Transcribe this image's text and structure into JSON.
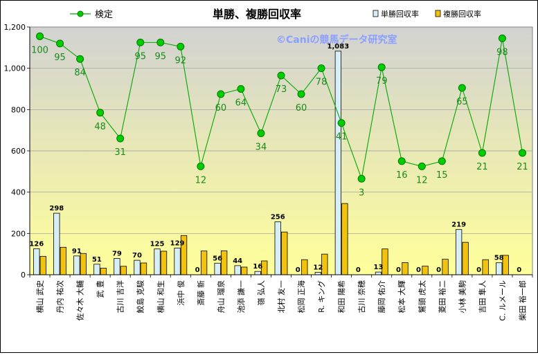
{
  "chart_data": {
    "type": "bar",
    "title": "単勝、複勝回収率",
    "watermark": "©Caniの競馬データ研究室",
    "categories": [
      "横山 武史",
      "丹内 祐次",
      "佐々木 大輔",
      "武 豊",
      "古川 吉洋",
      "鮫島 克駿",
      "横山 和生",
      "浜中 俊",
      "斎藤 新",
      "舟山 瑠泉",
      "池添 謙一",
      "嶺 弘人",
      "北村 友一",
      "松岡 正海",
      "R. キング",
      "和田 陽希",
      "古川 奈穂",
      "藤岡 佑介",
      "松本 大輝",
      "鷲頭 虎太",
      "菱田 裕二",
      "小林 美駒",
      "吉田 隼人",
      "C. ルメール",
      "柴田 裕一郎"
    ],
    "series": [
      {
        "name": "単勝回収率",
        "color": "#d8eef6",
        "values": [
          126,
          298,
          91,
          51,
          79,
          70,
          125,
          129,
          0,
          56,
          44,
          16,
          256,
          0,
          12,
          1083,
          0,
          13,
          0,
          0,
          0,
          219,
          0,
          58,
          0
        ]
      },
      {
        "name": "複勝回収率",
        "color": "#f2c20e",
        "values": [
          89,
          133,
          103,
          32,
          41,
          57,
          114,
          190,
          115,
          116,
          37,
          67,
          207,
          73,
          100,
          345,
          0,
          125,
          59,
          42,
          75,
          157,
          73,
          94,
          0
        ]
      },
      {
        "name": "検定",
        "type": "line",
        "color": "#00a800",
        "values": [
          1155,
          1120,
          1045,
          785,
          660,
          1125,
          1125,
          1105,
          525,
          875,
          900,
          685,
          965,
          875,
          1000,
          735,
          465,
          1005,
          550,
          525,
          550,
          905,
          590,
          1145,
          590
        ],
        "labels": [
          100,
          95,
          84,
          48,
          31,
          95,
          95,
          92,
          12,
          60,
          64,
          34,
          73,
          60,
          78,
          41,
          3,
          79,
          16,
          12,
          15,
          65,
          21,
          98,
          21
        ]
      }
    ],
    "bar_value_labels": [
      "126",
      "298",
      "91",
      "51",
      "79",
      "70",
      "125",
      "129",
      "0",
      "56",
      "44",
      "16",
      "256",
      "0",
      "12",
      "1,083",
      "0",
      "13",
      "0",
      "0",
      "0",
      "219",
      "0",
      "58",
      "0"
    ],
    "ylim": [
      0,
      1200
    ],
    "yticks": [
      0,
      200,
      400,
      600,
      800,
      1000,
      1200
    ],
    "ytick_labels": [
      "0",
      "200",
      "400",
      "600",
      "800",
      "1,000",
      "1,200"
    ],
    "legend": {
      "line_label": "検定",
      "bar1_label": "単勝回収率",
      "bar2_label": "複勝回収率"
    },
    "grid": true,
    "colors": {
      "line": "#00a800",
      "point_fill": "#00cc00",
      "point_label": "#1a8a1a",
      "plot_top": "#d2d2d2",
      "plot_bottom": "#ffff9a"
    }
  }
}
